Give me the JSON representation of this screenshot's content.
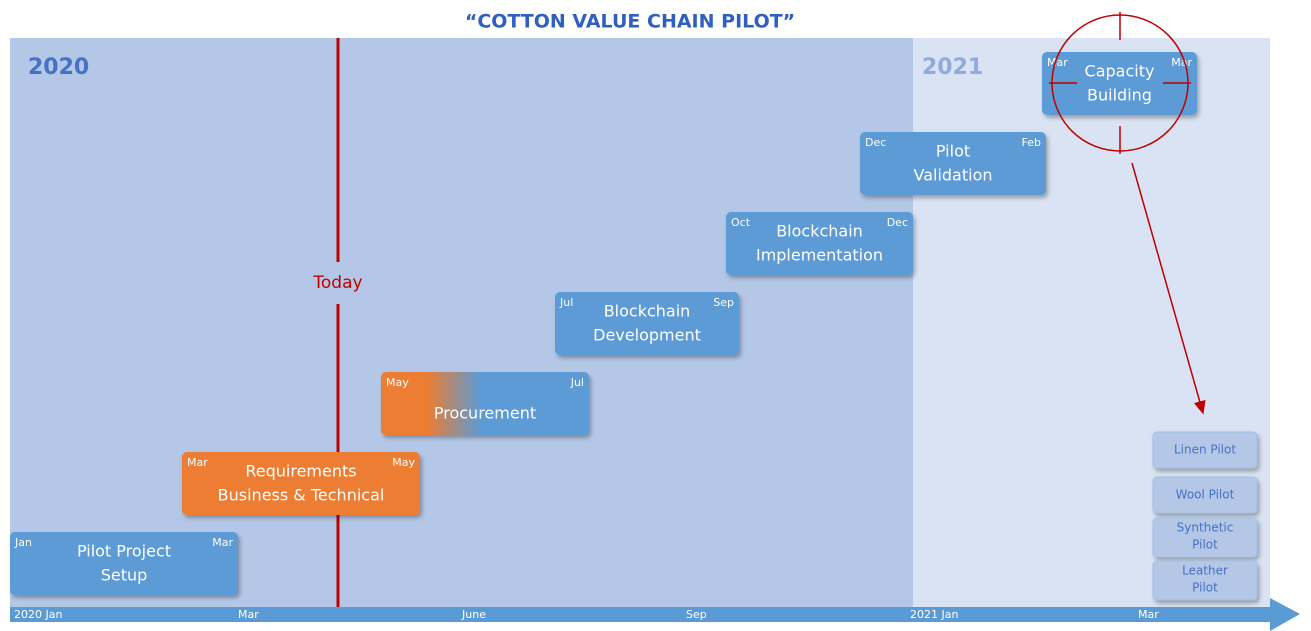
{
  "header": {
    "title": "“COTTON VALUE CHAIN PILOT”"
  },
  "years": [
    "2020",
    "2021"
  ],
  "today": "Today",
  "axis": [
    "2020 Jan",
    "Mar",
    "June",
    "Sep",
    "2021 Jan",
    "Mar"
  ],
  "tasks": [
    {
      "label": [
        "Pilot Project",
        "Setup"
      ],
      "start": "Jan",
      "end": "Mar"
    },
    {
      "label": [
        "Requirements",
        "Business & Technical"
      ],
      "start": "Mar",
      "end": "May"
    },
    {
      "label": [
        "Procurement"
      ],
      "start": "May",
      "end": "Jul"
    },
    {
      "label": [
        "Blockchain",
        "Development"
      ],
      "start": "Jul",
      "end": "Sep"
    },
    {
      "label": [
        "Blockchain",
        "Implementation"
      ],
      "start": "Oct",
      "end": "Dec"
    },
    {
      "label": [
        "Pilot",
        "Validation"
      ],
      "start": "Dec",
      "end": "Feb"
    },
    {
      "label": [
        "Capacity",
        "Building"
      ],
      "start": "Mar",
      "end": "Mar"
    }
  ],
  "pilots": [
    [
      "Linen Pilot"
    ],
    [
      "Wool Pilot"
    ],
    [
      "Synthetic",
      "Pilot"
    ],
    [
      "Leather",
      "Pilot"
    ]
  ]
}
